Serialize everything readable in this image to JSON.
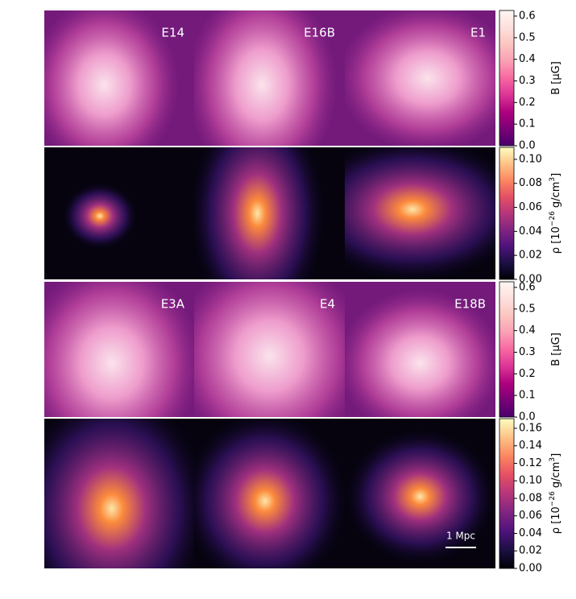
{
  "panels": [
    {
      "label": "E14",
      "field": "B"
    },
    {
      "label": "E16B",
      "field": "B"
    },
    {
      "label": "E1",
      "field": "B"
    },
    {
      "label": null,
      "field": "rho"
    },
    {
      "label": null,
      "field": "rho"
    },
    {
      "label": null,
      "field": "rho"
    },
    {
      "label": "E3A",
      "field": "B"
    },
    {
      "label": "E4",
      "field": "B"
    },
    {
      "label": "E18B",
      "field": "B"
    },
    {
      "label": null,
      "field": "rho"
    },
    {
      "label": null,
      "field": "rho"
    },
    {
      "label": null,
      "field": "rho"
    }
  ],
  "scale_bar": "1 Mpc",
  "chart_data": [
    {
      "type": "colorbar",
      "label": [
        {
          "text": "B [μG]"
        }
      ],
      "colormap": [
        "#49006a",
        "#7a0177",
        "#ae017e",
        "#dd3497",
        "#f768a1",
        "#fa9fb5",
        "#fcc5c0",
        "#fde0dd",
        "#fff7f3"
      ],
      "ylim": [
        0,
        0.626
      ],
      "yticks": [
        {
          "value": 0,
          "label": "0.0"
        },
        {
          "value": 0.1,
          "label": "0.1"
        },
        {
          "value": 0.2,
          "label": "0.2"
        },
        {
          "value": 0.3,
          "label": "0.3"
        },
        {
          "value": 0.4,
          "label": "0.4"
        },
        {
          "value": 0.5,
          "label": "0.5"
        },
        {
          "value": 0.6,
          "label": "0.6"
        }
      ]
    },
    {
      "type": "colorbar",
      "label": [
        {
          "text": "ρ [10"
        },
        {
          "text": "−26",
          "sup": true
        },
        {
          "text": " g/cm"
        },
        {
          "text": "3",
          "sup": true
        },
        {
          "text": "]"
        }
      ],
      "colormap": [
        "#000004",
        "#1c1044",
        "#4f127b",
        "#812581",
        "#b5367a",
        "#e55064",
        "#fb8761",
        "#fec287",
        "#fcfdbf"
      ],
      "ylim": [
        0,
        0.11
      ],
      "yticks": [
        {
          "value": 0,
          "label": "0.00"
        },
        {
          "value": 0.02,
          "label": "0.02"
        },
        {
          "value": 0.04,
          "label": "0.04"
        },
        {
          "value": 0.06,
          "label": "0.06"
        },
        {
          "value": 0.08,
          "label": "0.08"
        },
        {
          "value": 0.1,
          "label": "0.10"
        }
      ]
    },
    {
      "type": "colorbar",
      "label": [
        {
          "text": "B [μG]"
        }
      ],
      "colormap": [
        "#49006a",
        "#7a0177",
        "#ae017e",
        "#dd3497",
        "#f768a1",
        "#fa9fb5",
        "#fcc5c0",
        "#fde0dd",
        "#fff7f3"
      ],
      "ylim": [
        0,
        0.626
      ],
      "yticks": [
        {
          "value": 0,
          "label": "0.0"
        },
        {
          "value": 0.1,
          "label": "0.1"
        },
        {
          "value": 0.2,
          "label": "0.2"
        },
        {
          "value": 0.3,
          "label": "0.3"
        },
        {
          "value": 0.4,
          "label": "0.4"
        },
        {
          "value": 0.5,
          "label": "0.5"
        },
        {
          "value": 0.6,
          "label": "0.6"
        }
      ]
    },
    {
      "type": "colorbar",
      "label": [
        {
          "text": "ρ [10"
        },
        {
          "text": "−26",
          "sup": true
        },
        {
          "text": " g/cm"
        },
        {
          "text": "3",
          "sup": true
        },
        {
          "text": "]"
        }
      ],
      "colormap": [
        "#000004",
        "#1c1044",
        "#4f127b",
        "#812581",
        "#b5367a",
        "#e55064",
        "#fb8761",
        "#fec287",
        "#fcfdbf"
      ],
      "ylim": [
        0,
        0.171
      ],
      "yticks": [
        {
          "value": 0,
          "label": "0.00"
        },
        {
          "value": 0.02,
          "label": "0.02"
        },
        {
          "value": 0.04,
          "label": "0.04"
        },
        {
          "value": 0.06,
          "label": "0.06"
        },
        {
          "value": 0.08,
          "label": "0.08"
        },
        {
          "value": 0.1,
          "label": "0.10"
        },
        {
          "value": 0.12,
          "label": "0.12"
        },
        {
          "value": 0.14,
          "label": "0.14"
        },
        {
          "value": 0.16,
          "label": "0.16"
        }
      ]
    }
  ]
}
